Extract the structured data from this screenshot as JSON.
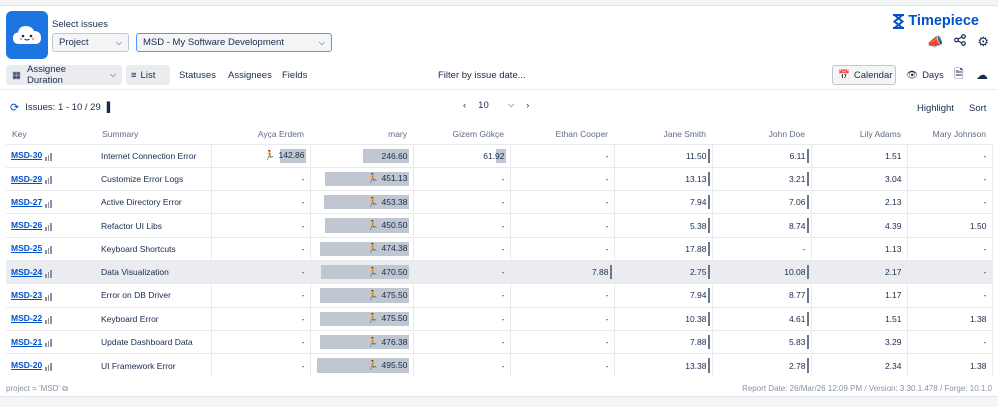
{
  "header": {
    "select_label": "Select issues",
    "project_select": "Project",
    "project_value": "MSD - My Software Development",
    "brand": "Timepiece",
    "icons": [
      "megaphone-icon",
      "share-icon",
      "gear-icon"
    ]
  },
  "toolbar": {
    "duration_label": "Assignee Duration",
    "list_label": "List",
    "statuses_label": "Statuses",
    "assignees_label": "Assignees",
    "fields_label": "Fields",
    "filter_label": "Filter by issue date...",
    "calendar_label": "Calendar",
    "days_label": "Days"
  },
  "pagination": {
    "issues_text": "Issues: 1 - 10 / 29",
    "page_size": "10",
    "highlight_label": "Highlight",
    "sort_label": "Sort"
  },
  "table": {
    "columns": [
      "Key",
      "Summary",
      "Ayça Erdem",
      "mary",
      "Gizem Gökçe",
      "Ethan Cooper",
      "Jane Smith",
      "John Doe",
      "Lily Adams",
      "Mary Johnson"
    ],
    "rows": [
      {
        "key": "MSD-30",
        "summary": "Internet Connection Error",
        "cells": [
          "142.86",
          "246.60",
          "61.92",
          "-",
          "11.50",
          "6.11",
          "1.51",
          "-"
        ],
        "highlighted": false
      },
      {
        "key": "MSD-29",
        "summary": "Customize Error Logs",
        "cells": [
          "-",
          "451.13",
          "-",
          "-",
          "13.13",
          "3.21",
          "3.04",
          "-"
        ],
        "highlighted": false
      },
      {
        "key": "MSD-27",
        "summary": "Active Directory Error",
        "cells": [
          "-",
          "453.38",
          "-",
          "-",
          "7.94",
          "7.06",
          "2.13",
          "-"
        ],
        "highlighted": false
      },
      {
        "key": "MSD-26",
        "summary": "Refactor UI Libs",
        "cells": [
          "-",
          "450.50",
          "-",
          "-",
          "5.38",
          "8.74",
          "4.39",
          "1.50"
        ],
        "highlighted": false
      },
      {
        "key": "MSD-25",
        "summary": "Keyboard Shortcuts",
        "cells": [
          "-",
          "474.38",
          "-",
          "-",
          "17.88",
          "-",
          "1.13",
          "-"
        ],
        "highlighted": false
      },
      {
        "key": "MSD-24",
        "summary": "Data Visualization",
        "cells": [
          "-",
          "470.50",
          "-",
          "7.88",
          "2.75",
          "10.08",
          "2.17",
          "-"
        ],
        "highlighted": true
      },
      {
        "key": "MSD-23",
        "summary": "Error on DB Driver",
        "cells": [
          "-",
          "475.50",
          "-",
          "-",
          "7.94",
          "8.77",
          "1.17",
          "-"
        ],
        "highlighted": false
      },
      {
        "key": "MSD-22",
        "summary": "Keyboard Error",
        "cells": [
          "-",
          "475.50",
          "-",
          "-",
          "10.38",
          "4.61",
          "1.51",
          "1.38"
        ],
        "highlighted": false
      },
      {
        "key": "MSD-21",
        "summary": "Update Dashboard Data",
        "cells": [
          "-",
          "476.38",
          "-",
          "-",
          "7.88",
          "5.83",
          "3.29",
          "-"
        ],
        "highlighted": false
      },
      {
        "key": "MSD-20",
        "summary": "UI Framework Error",
        "cells": [
          "-",
          "495.50",
          "-",
          "-",
          "13.38",
          "2.78",
          "2.34",
          "1.38"
        ],
        "highlighted": false
      }
    ]
  },
  "footer": {
    "jql": "project = 'MSD'",
    "report_info": "Report Date: 26/Mar/26 12:09 PM / Version: 3.30.1.478 / Forge: 10.1.0"
  }
}
